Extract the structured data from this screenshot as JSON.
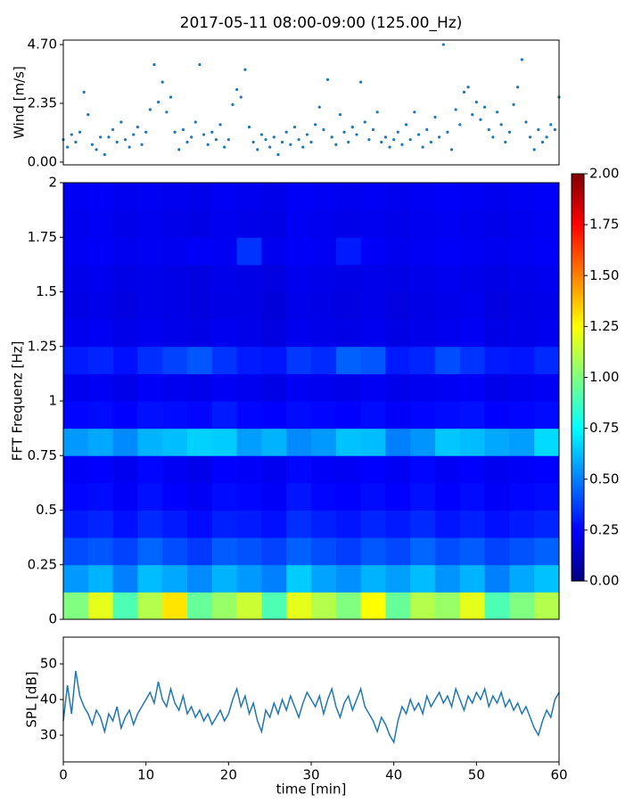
{
  "title": "2017-05-11 08:00-09:00 (125.00_Hz)",
  "chart_data": [
    {
      "type": "scatter",
      "ylabel": "Wind [m/s]",
      "color": "#1f77b4",
      "xlim": [
        0,
        60
      ],
      "ylim": [
        -0.11,
        4.88
      ],
      "yticks": [
        {
          "value": 0,
          "label": "0.00"
        },
        {
          "value": 2.35,
          "label": "2.35"
        },
        {
          "value": 4.7,
          "label": "4.70"
        }
      ],
      "x": [
        0,
        0.5,
        1,
        1.5,
        2,
        2.5,
        3,
        3.5,
        4,
        4.5,
        5,
        5.5,
        6,
        6.5,
        7,
        7.5,
        8,
        8.5,
        9,
        9.5,
        10,
        10.5,
        11,
        11.5,
        12,
        12.5,
        13,
        13.5,
        14,
        14.5,
        15,
        15.5,
        16,
        16.5,
        17,
        17.5,
        18,
        18.5,
        19,
        19.5,
        20,
        20.5,
        21,
        21.5,
        22,
        22.5,
        23,
        23.5,
        24,
        24.5,
        25,
        25.5,
        26,
        26.5,
        27,
        27.5,
        28,
        28.5,
        29,
        29.5,
        30,
        30.5,
        31,
        31.5,
        32,
        32.5,
        33,
        33.5,
        34,
        34.5,
        35,
        35.5,
        36,
        36.5,
        37,
        37.5,
        38,
        38.5,
        39,
        39.5,
        40,
        40.5,
        41,
        41.5,
        42,
        42.5,
        43,
        43.5,
        44,
        44.5,
        45,
        45.5,
        46,
        46.5,
        47,
        47.5,
        48,
        48.5,
        49,
        49.5,
        50,
        50.5,
        51,
        51.5,
        52,
        52.5,
        53,
        53.5,
        54,
        54.5,
        55,
        55.5,
        56,
        56.5,
        57,
        57.5,
        58,
        58.5,
        59,
        59.5,
        60
      ],
      "values": [
        0.9,
        0.6,
        1.1,
        0.8,
        1.2,
        2.8,
        1.9,
        0.7,
        0.5,
        1.0,
        0.3,
        1.0,
        1.3,
        0.8,
        1.6,
        0.9,
        0.6,
        1.1,
        1.4,
        0.7,
        1.2,
        2.1,
        3.9,
        2.4,
        3.2,
        2.0,
        2.6,
        1.2,
        0.5,
        1.3,
        0.8,
        1.0,
        1.6,
        3.9,
        1.1,
        0.7,
        1.2,
        0.9,
        1.5,
        0.6,
        0.9,
        2.3,
        2.9,
        2.6,
        3.7,
        1.4,
        0.8,
        0.5,
        1.1,
        0.9,
        0.6,
        1.0,
        0.3,
        0.8,
        1.2,
        0.7,
        1.4,
        0.9,
        0.6,
        1.1,
        0.8,
        1.5,
        2.2,
        1.3,
        3.3,
        1.0,
        0.7,
        1.9,
        1.2,
        0.8,
        1.4,
        1.1,
        3.2,
        1.6,
        0.9,
        1.3,
        2.0,
        0.8,
        1.0,
        0.6,
        0.9,
        1.2,
        0.7,
        1.5,
        0.9,
        2.0,
        1.1,
        0.6,
        1.3,
        0.8,
        1.8,
        1.0,
        4.7,
        1.2,
        0.5,
        2.1,
        1.5,
        2.8,
        3.0,
        1.9,
        2.4,
        1.7,
        2.2,
        1.3,
        1.0,
        2.0,
        1.5,
        0.8,
        1.2,
        2.3,
        3.0,
        4.1,
        1.6,
        1.0,
        0.5,
        1.3,
        0.8,
        1.0,
        1.5,
        1.3,
        2.6
      ]
    },
    {
      "type": "heatmap",
      "ylabel": "FFT Frequenz [Hz]",
      "colormap": "jet",
      "xlim": [
        0,
        60
      ],
      "ylim": [
        0,
        2
      ],
      "yticks": [
        0,
        0.25,
        0.5,
        0.75,
        1,
        1.25,
        1.5,
        1.75,
        2
      ],
      "clim": [
        0,
        2
      ],
      "cticks": [
        {
          "value": 0,
          "label": "0.00"
        },
        {
          "value": 0.25,
          "label": "0.25"
        },
        {
          "value": 0.5,
          "label": "0.50"
        },
        {
          "value": 0.75,
          "label": "0.75"
        },
        {
          "value": 1,
          "label": "1.00"
        },
        {
          "value": 1.25,
          "label": "1.25"
        },
        {
          "value": 1.5,
          "label": "1.50"
        },
        {
          "value": 1.75,
          "label": "1.75"
        },
        {
          "value": 2,
          "label": "2.00"
        }
      ],
      "xbins": [
        0,
        3,
        6,
        9,
        12,
        15,
        18,
        21,
        24,
        27,
        30,
        33,
        36,
        39,
        42,
        45,
        48,
        51,
        54,
        57,
        60
      ],
      "ybins": [
        0,
        0.125,
        0.25,
        0.375,
        0.5,
        0.625,
        0.75,
        0.875,
        1,
        1.125,
        1.25,
        1.375,
        1.5,
        1.625,
        1.75,
        1.875,
        2
      ],
      "z": [
        [
          1.0,
          1.2,
          0.9,
          1.1,
          1.3,
          0.95,
          1.05,
          1.15,
          0.9,
          1.2,
          1.1,
          1.0,
          1.25,
          0.95,
          1.1,
          1.05,
          1.2,
          0.9,
          1.0,
          1.1
        ],
        [
          0.55,
          0.6,
          0.5,
          0.62,
          0.58,
          0.52,
          0.6,
          0.55,
          0.5,
          0.65,
          0.57,
          0.53,
          0.6,
          0.56,
          0.62,
          0.54,
          0.6,
          0.5,
          0.58,
          0.63
        ],
        [
          0.4,
          0.42,
          0.38,
          0.45,
          0.4,
          0.36,
          0.43,
          0.41,
          0.38,
          0.44,
          0.4,
          0.37,
          0.42,
          0.39,
          0.45,
          0.4,
          0.43,
          0.38,
          0.41,
          0.44
        ],
        [
          0.3,
          0.32,
          0.28,
          0.33,
          0.3,
          0.27,
          0.31,
          0.3,
          0.28,
          0.34,
          0.31,
          0.29,
          0.32,
          0.3,
          0.33,
          0.29,
          0.31,
          0.28,
          0.3,
          0.32
        ],
        [
          0.26,
          0.27,
          0.24,
          0.28,
          0.25,
          0.23,
          0.27,
          0.26,
          0.24,
          0.29,
          0.26,
          0.25,
          0.27,
          0.25,
          0.28,
          0.25,
          0.27,
          0.24,
          0.26,
          0.27
        ],
        [
          0.24,
          0.25,
          0.22,
          0.26,
          0.23,
          0.21,
          0.25,
          0.24,
          0.22,
          0.26,
          0.24,
          0.23,
          0.25,
          0.23,
          0.26,
          0.23,
          0.25,
          0.22,
          0.24,
          0.25
        ],
        [
          0.55,
          0.58,
          0.52,
          0.6,
          0.62,
          0.66,
          0.65,
          0.56,
          0.6,
          0.52,
          0.55,
          0.63,
          0.62,
          0.5,
          0.54,
          0.64,
          0.62,
          0.58,
          0.56,
          0.68
        ],
        [
          0.26,
          0.27,
          0.25,
          0.28,
          0.27,
          0.26,
          0.3,
          0.26,
          0.25,
          0.27,
          0.26,
          0.25,
          0.27,
          0.24,
          0.26,
          0.27,
          0.28,
          0.25,
          0.26,
          0.27
        ],
        [
          0.22,
          0.23,
          0.21,
          0.24,
          0.22,
          0.21,
          0.23,
          0.22,
          0.2,
          0.23,
          0.22,
          0.21,
          0.23,
          0.21,
          0.22,
          0.23,
          0.24,
          0.21,
          0.22,
          0.23
        ],
        [
          0.3,
          0.32,
          0.28,
          0.34,
          0.38,
          0.42,
          0.35,
          0.3,
          0.29,
          0.36,
          0.33,
          0.44,
          0.42,
          0.3,
          0.32,
          0.4,
          0.35,
          0.3,
          0.29,
          0.33
        ],
        [
          0.22,
          0.23,
          0.21,
          0.22,
          0.21,
          0.2,
          0.22,
          0.21,
          0.19,
          0.22,
          0.21,
          0.2,
          0.22,
          0.2,
          0.21,
          0.22,
          0.23,
          0.2,
          0.21,
          0.22
        ],
        [
          0.2,
          0.21,
          0.19,
          0.21,
          0.2,
          0.19,
          0.2,
          0.2,
          0.18,
          0.21,
          0.2,
          0.19,
          0.21,
          0.19,
          0.2,
          0.21,
          0.22,
          0.19,
          0.2,
          0.21
        ],
        [
          0.21,
          0.22,
          0.2,
          0.21,
          0.2,
          0.19,
          0.21,
          0.2,
          0.19,
          0.22,
          0.21,
          0.2,
          0.21,
          0.2,
          0.21,
          0.22,
          0.21,
          0.2,
          0.21,
          0.22
        ],
        [
          0.23,
          0.24,
          0.22,
          0.23,
          0.22,
          0.24,
          0.23,
          0.35,
          0.22,
          0.24,
          0.23,
          0.3,
          0.24,
          0.22,
          0.23,
          0.24,
          0.23,
          0.22,
          0.23,
          0.24
        ],
        [
          0.22,
          0.23,
          0.21,
          0.22,
          0.21,
          0.2,
          0.22,
          0.21,
          0.2,
          0.23,
          0.22,
          0.21,
          0.22,
          0.21,
          0.22,
          0.23,
          0.22,
          0.21,
          0.22,
          0.23
        ],
        [
          0.23,
          0.24,
          0.22,
          0.23,
          0.22,
          0.21,
          0.23,
          0.22,
          0.21,
          0.24,
          0.23,
          0.22,
          0.23,
          0.22,
          0.23,
          0.24,
          0.23,
          0.22,
          0.23,
          0.24
        ]
      ]
    },
    {
      "type": "line",
      "ylabel": "SPL [dB]",
      "xlabel": "time [min]",
      "color": "#1f77b4",
      "xlim": [
        0,
        60
      ],
      "xticks": [
        0,
        10,
        20,
        30,
        40,
        50,
        60
      ],
      "ylim": [
        22.5,
        57.5
      ],
      "yticks": [
        30,
        40,
        50
      ],
      "x": [
        0,
        0.5,
        1,
        1.5,
        2,
        2.5,
        3,
        3.5,
        4,
        4.5,
        5,
        5.5,
        6,
        6.5,
        7,
        7.5,
        8,
        8.5,
        9,
        9.5,
        10,
        10.5,
        11,
        11.5,
        12,
        12.5,
        13,
        13.5,
        14,
        14.5,
        15,
        15.5,
        16,
        16.5,
        17,
        17.5,
        18,
        18.5,
        19,
        19.5,
        20,
        20.5,
        21,
        21.5,
        22,
        22.5,
        23,
        23.5,
        24,
        24.5,
        25,
        25.5,
        26,
        26.5,
        27,
        27.5,
        28,
        28.5,
        29,
        29.5,
        30,
        30.5,
        31,
        31.5,
        32,
        32.5,
        33,
        33.5,
        34,
        34.5,
        35,
        35.5,
        36,
        36.5,
        37,
        37.5,
        38,
        38.5,
        39,
        39.5,
        40,
        40.5,
        41,
        41.5,
        42,
        42.5,
        43,
        43.5,
        44,
        44.5,
        45,
        45.5,
        46,
        46.5,
        47,
        47.5,
        48,
        48.5,
        49,
        49.5,
        50,
        50.5,
        51,
        51.5,
        52,
        52.5,
        53,
        53.5,
        54,
        54.5,
        55,
        55.5,
        56,
        56.5,
        57,
        57.5,
        58,
        58.5,
        59,
        59.5,
        60
      ],
      "values": [
        34,
        44,
        36,
        48,
        41,
        38,
        36,
        33,
        37,
        35,
        31,
        36,
        34,
        38,
        32,
        35,
        37,
        33,
        36,
        38,
        40,
        42,
        39,
        45,
        40,
        38,
        43,
        39,
        37,
        41,
        36,
        38,
        35,
        37,
        34,
        36,
        33,
        35,
        37,
        34,
        36,
        40,
        43,
        38,
        41,
        36,
        39,
        34,
        31,
        37,
        35,
        39,
        36,
        40,
        37,
        41,
        38,
        35,
        39,
        42,
        40,
        38,
        41,
        36,
        40,
        43,
        38,
        35,
        39,
        41,
        37,
        40,
        43,
        38,
        36,
        34,
        31,
        35,
        33,
        30,
        28,
        34,
        38,
        36,
        40,
        37,
        39,
        36,
        41,
        38,
        40,
        42,
        39,
        41,
        38,
        43,
        40,
        37,
        41,
        39,
        42,
        40,
        43,
        38,
        41,
        39,
        42,
        38,
        40,
        37,
        39,
        36,
        38,
        35,
        32,
        30,
        34,
        37,
        35,
        40,
        42
      ]
    }
  ]
}
